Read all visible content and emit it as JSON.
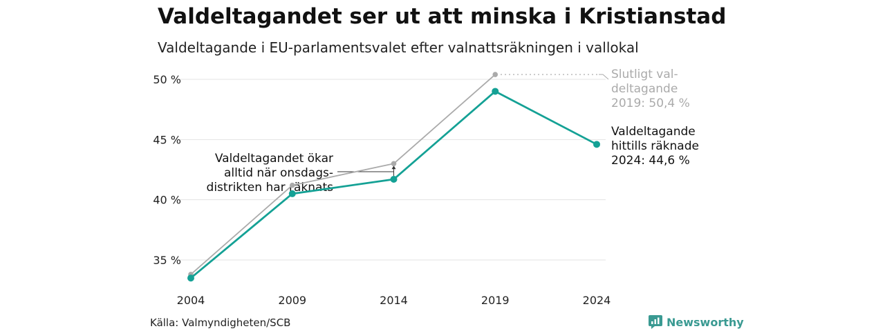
{
  "header": {
    "title": "Valdeltagandet ser ut att minska i Kristianstad",
    "subtitle": "Valdeltagande i EU-parlamentsvalet efter valnattsräkningen i vallokal"
  },
  "footer": {
    "source": "Källa: Valmyndigheten/SCB",
    "brand": "Newsworthy"
  },
  "colors": {
    "teal": "#14a195",
    "gray": "#aaaaaa",
    "grid": "#e3e3e3",
    "brand": "#3a9a92"
  },
  "chart_data": {
    "type": "line",
    "x": [
      2004,
      2009,
      2014,
      2019,
      2024
    ],
    "ylim": [
      33,
      51
    ],
    "yticks": [
      35,
      40,
      45,
      50
    ],
    "ytick_labels": [
      "35 %",
      "40 %",
      "45 %",
      "50 %"
    ],
    "xtick_labels": [
      "2004",
      "2009",
      "2014",
      "2019",
      "2024"
    ],
    "grid": true,
    "series": [
      {
        "key": "final",
        "color": "#aaaaaa",
        "values": [
          33.8,
          41.2,
          43.0,
          50.4,
          null
        ]
      },
      {
        "key": "count_night",
        "color": "#14a195",
        "values": [
          33.5,
          40.5,
          41.7,
          49.0,
          44.6
        ]
      }
    ],
    "annotations": {
      "final_2019": [
        "Slutligt val-",
        "deltagande",
        "2019: 50,4 %"
      ],
      "current_2024": [
        "Valdeltagande",
        "hittills räknade",
        "2024: 44,6 %"
      ],
      "wednesday_districts": [
        "Valdeltagandet ökar",
        "alltid när onsdags-",
        "distrikten har räknats"
      ]
    }
  }
}
